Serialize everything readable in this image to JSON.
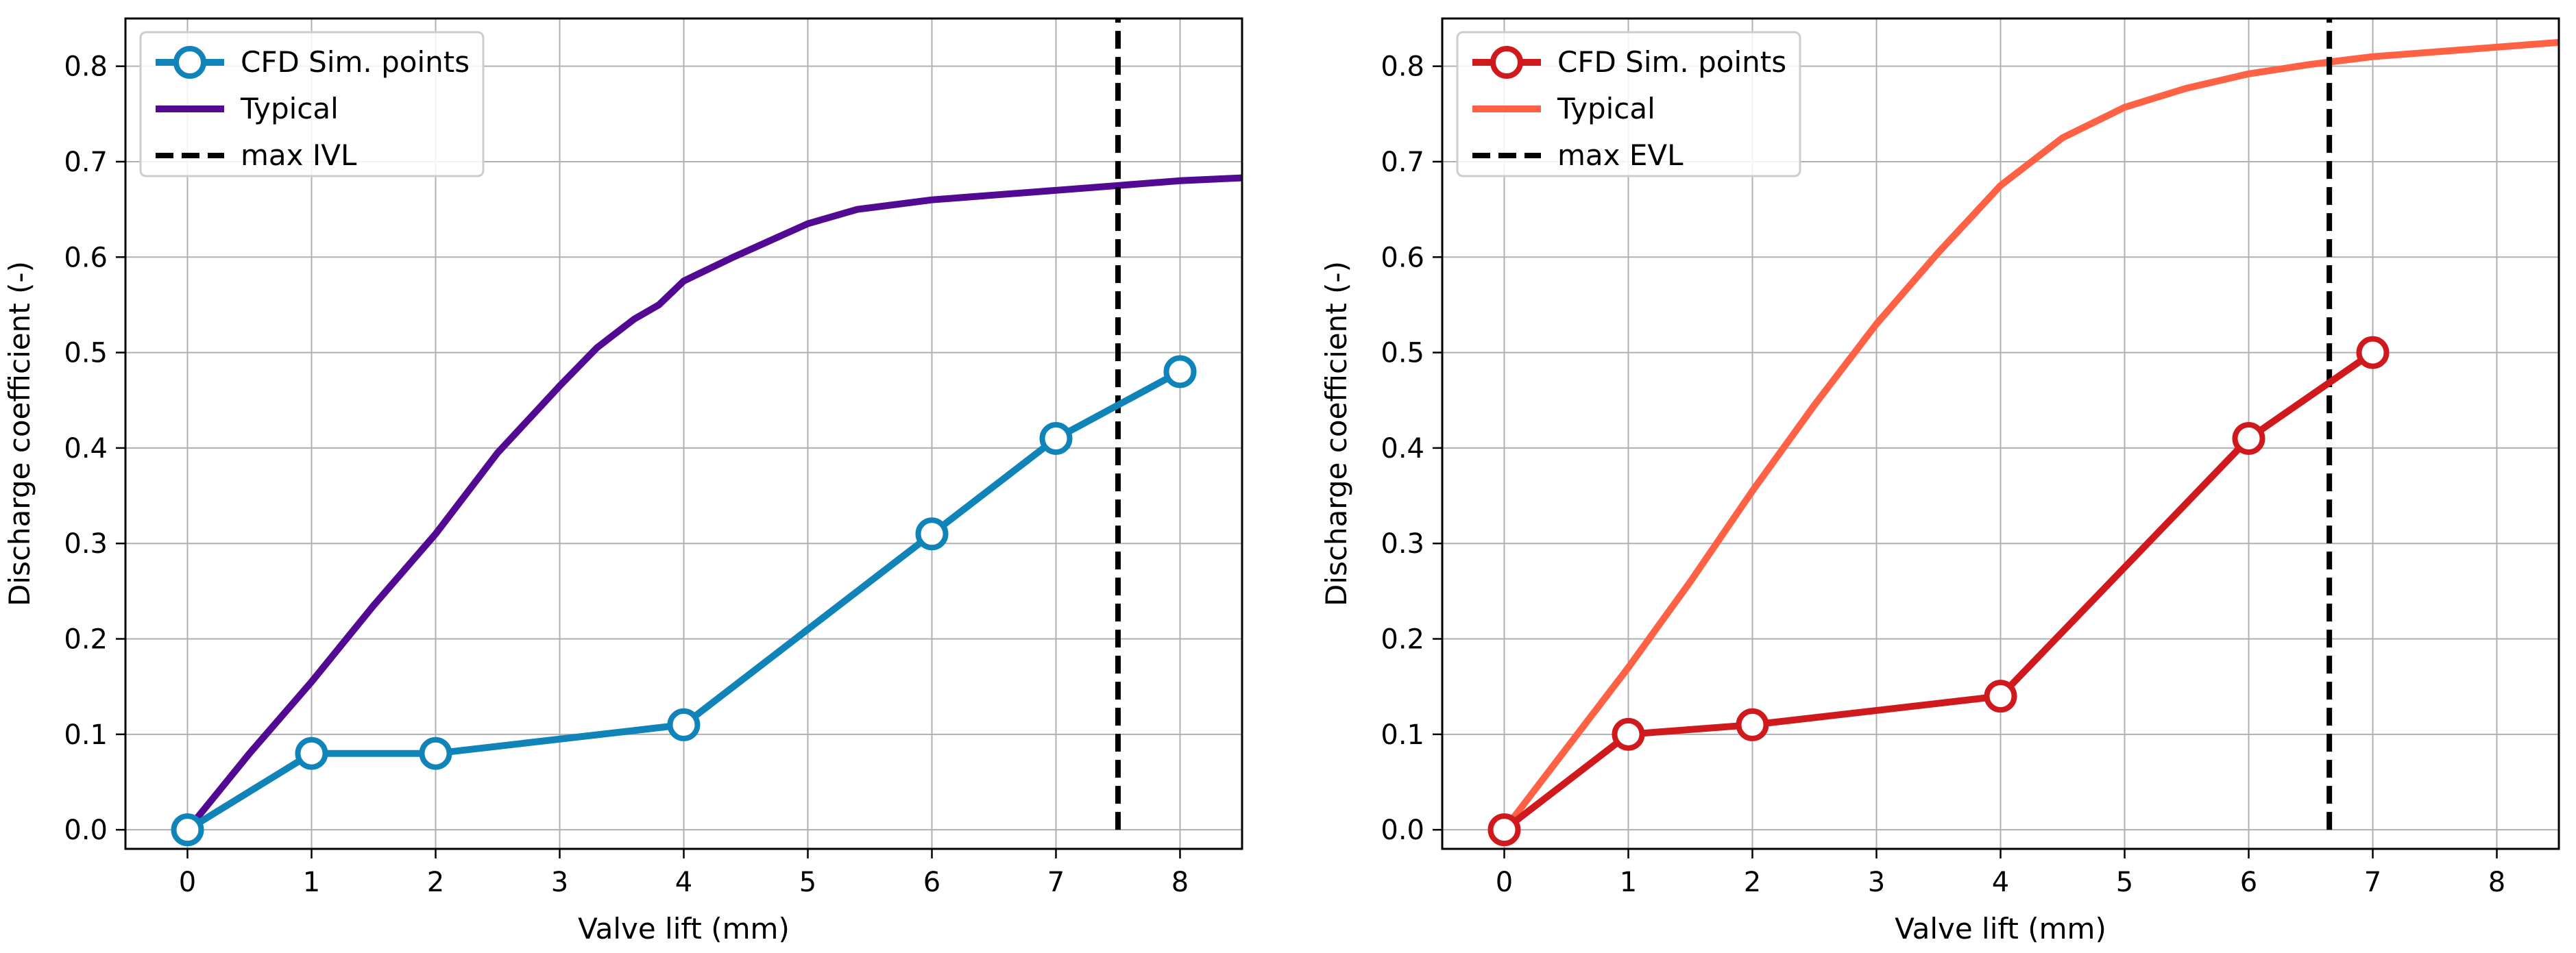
{
  "chart_data": [
    {
      "type": "line",
      "xlabel": "Valve lift (mm)",
      "ylabel": "Discharge coefficient (-)",
      "xlim": [
        -0.5,
        8.5
      ],
      "ylim": [
        -0.02,
        0.85
      ],
      "xticks": [
        0,
        1,
        2,
        3,
        4,
        5,
        6,
        7,
        8
      ],
      "yticks": [
        0.0,
        0.1,
        0.2,
        0.3,
        0.4,
        0.5,
        0.6,
        0.7,
        0.8
      ],
      "ytick_labels": [
        "0.0",
        "0.1",
        "0.2",
        "0.3",
        "0.4",
        "0.5",
        "0.6",
        "0.7",
        "0.8"
      ],
      "grid": true,
      "legend_position": "top-left",
      "series": [
        {
          "name": "CFD Sim. points",
          "kind": "markers-line",
          "color": "#1084b8",
          "x": [
            0,
            1,
            2,
            4,
            6,
            7,
            8
          ],
          "y": [
            0.0,
            0.08,
            0.08,
            0.11,
            0.31,
            0.41,
            0.48
          ]
        },
        {
          "name": "Typical",
          "kind": "line",
          "color": "#520a92",
          "x": [
            0,
            0.5,
            1,
            1.5,
            2,
            2.5,
            3,
            3.3,
            3.6,
            3.8,
            4,
            4.4,
            5,
            5.4,
            6,
            6.5,
            7,
            7.5,
            8,
            8.5
          ],
          "y": [
            0.0,
            0.08,
            0.155,
            0.235,
            0.31,
            0.395,
            0.465,
            0.505,
            0.535,
            0.55,
            0.575,
            0.6,
            0.635,
            0.65,
            0.66,
            0.665,
            0.67,
            0.675,
            0.68,
            0.683
          ]
        }
      ],
      "vline": {
        "name": "max IVL",
        "x": 7.5,
        "color": "#000000"
      }
    },
    {
      "type": "line",
      "xlabel": "Valve lift (mm)",
      "ylabel": "Discharge coefficient (-)",
      "xlim": [
        -0.5,
        8.5
      ],
      "ylim": [
        -0.02,
        0.85
      ],
      "xticks": [
        0,
        1,
        2,
        3,
        4,
        5,
        6,
        7,
        8
      ],
      "yticks": [
        0.0,
        0.1,
        0.2,
        0.3,
        0.4,
        0.5,
        0.6,
        0.7,
        0.8
      ],
      "ytick_labels": [
        "0.0",
        "0.1",
        "0.2",
        "0.3",
        "0.4",
        "0.5",
        "0.6",
        "0.7",
        "0.8"
      ],
      "grid": true,
      "legend_position": "top-left",
      "series": [
        {
          "name": "CFD Sim. points",
          "kind": "markers-line",
          "color": "#d0191c",
          "x": [
            0,
            1,
            2,
            4,
            6,
            7
          ],
          "y": [
            0.0,
            0.1,
            0.11,
            0.14,
            0.41,
            0.5
          ]
        },
        {
          "name": "Typical",
          "kind": "line",
          "color": "#fe6143",
          "x": [
            0,
            0.5,
            1,
            1.5,
            2,
            2.5,
            3,
            3.5,
            4,
            4.5,
            5,
            5.5,
            6,
            6.5,
            7,
            7.5,
            8,
            8.5
          ],
          "y": [
            0.0,
            0.085,
            0.17,
            0.26,
            0.355,
            0.445,
            0.53,
            0.605,
            0.675,
            0.725,
            0.757,
            0.777,
            0.792,
            0.802,
            0.81,
            0.815,
            0.82,
            0.825
          ]
        }
      ],
      "vline": {
        "name": "max EVL",
        "x": 6.65,
        "color": "#000000"
      }
    }
  ]
}
